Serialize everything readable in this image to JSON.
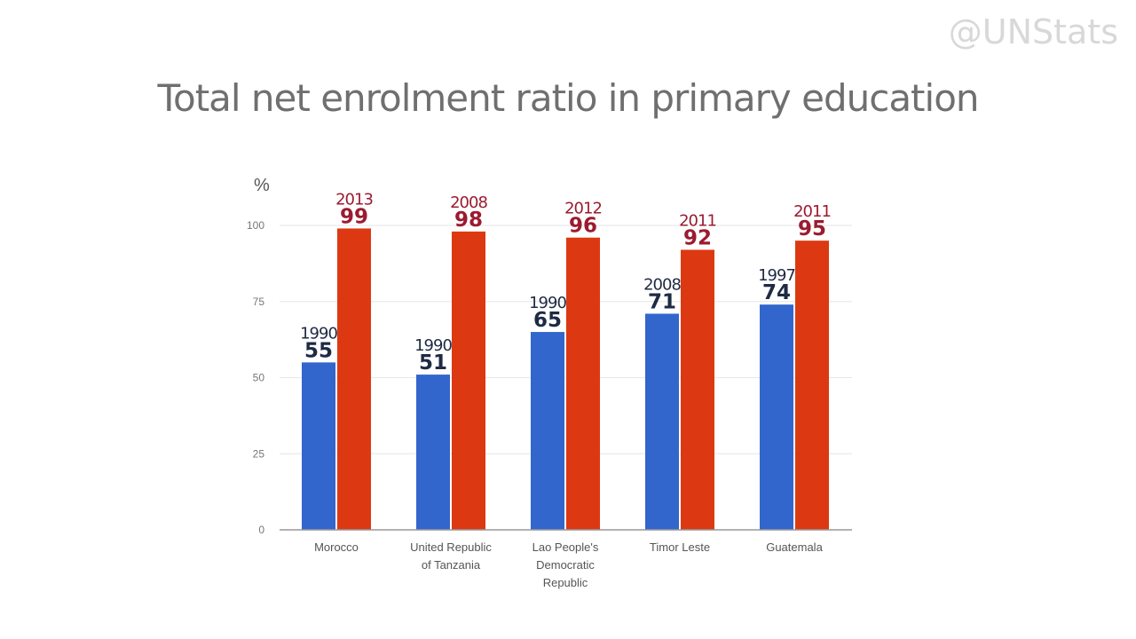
{
  "watermark": "@UNStats",
  "chart_data": {
    "type": "bar",
    "title": "Total net enrolment ratio in primary education",
    "ylabel": "%",
    "xlabel": "",
    "ylim": [
      0,
      100
    ],
    "yticks": [
      "0",
      "25",
      "50",
      "75",
      "100"
    ],
    "grid": true,
    "categories": [
      [
        "Morocco"
      ],
      [
        "United Republic",
        "of Tanzania"
      ],
      [
        "Lao People's",
        "Democratic",
        "Republic"
      ],
      [
        "Timor Leste"
      ],
      [
        "Guatemala"
      ]
    ],
    "series": [
      {
        "name": "earlier",
        "color": "#3366cc",
        "label_color": "#1f2a44",
        "years": [
          "1990",
          "1990",
          "1990",
          "2008",
          "1997"
        ],
        "values": [
          55,
          51,
          65,
          71,
          74
        ]
      },
      {
        "name": "latest",
        "color": "#dc3912",
        "label_color": "#9b1b30",
        "years": [
          "2013",
          "2008",
          "2012",
          "2011",
          "2011"
        ],
        "values": [
          99,
          98,
          96,
          92,
          95
        ]
      }
    ]
  }
}
